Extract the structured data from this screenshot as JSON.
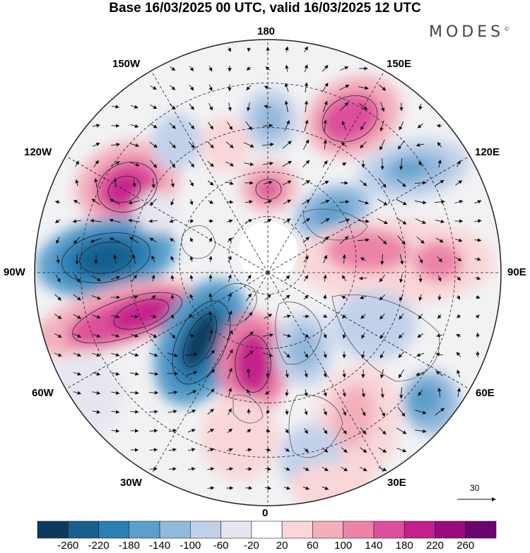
{
  "title": "Base 16/03/2025 00 UTC, valid 16/03/2025 12 UTC",
  "brand": "MODES",
  "brand_mark": "©",
  "lon_labels": {
    "l180": "180",
    "l150w": "150W",
    "l150e": "150E",
    "l120w": "120W",
    "l120e": "120E",
    "l90w": "90W",
    "l90e": "90E",
    "l60w": "60W",
    "l60e": "60E",
    "l30w": "30W",
    "l30e": "30E",
    "l0": "0"
  },
  "vector_scale": "30",
  "colorbar": {
    "ticks": [
      "-260",
      "-220",
      "-180",
      "-140",
      "-100",
      "-60",
      "-20",
      "20",
      "60",
      "100",
      "140",
      "180",
      "220",
      "260"
    ],
    "colors": [
      "#0d3a5c",
      "#175f8d",
      "#2a7fb5",
      "#5b9fcb",
      "#92b8dc",
      "#c2d1ea",
      "#e6e6f1",
      "#ffffff",
      "#f9d6d7",
      "#f3b0bb",
      "#ec84a8",
      "#de4f9b",
      "#c4208c",
      "#9a0c7e",
      "#6a0470"
    ]
  },
  "colors": {
    "land_outline": "#555555",
    "grid": "#222222",
    "vector": "#111111",
    "contour": "#222222"
  }
}
